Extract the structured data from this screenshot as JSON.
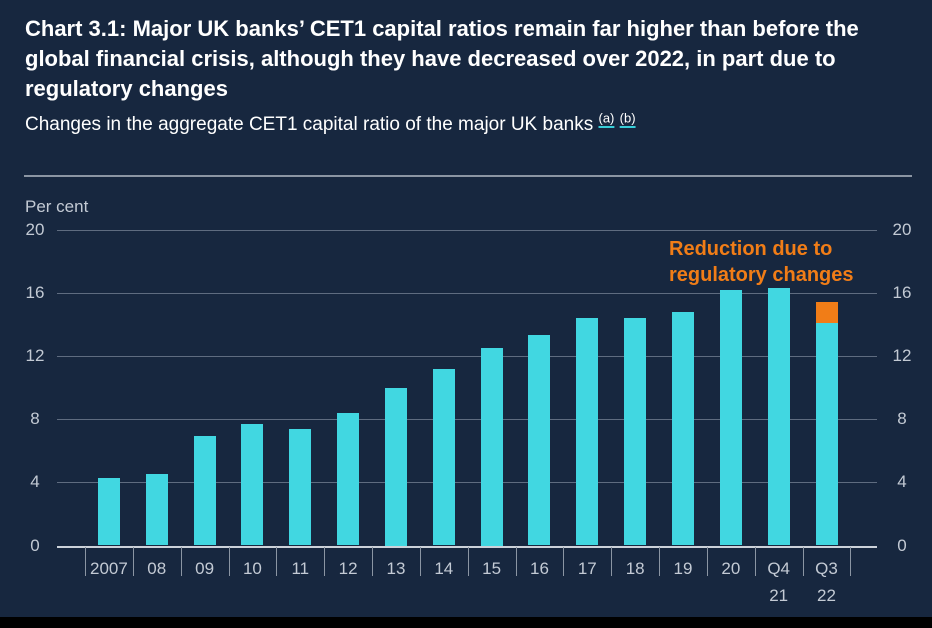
{
  "header": {
    "title": "Chart 3.1: Major UK banks’ CET1 capital ratios remain far higher than before the global financial crisis, although they have decreased over 2022, in part due to regulatory changes",
    "subtitle": "Changes in the aggregate CET1 capital ratio of the major UK banks",
    "footnotes": [
      "(a)",
      "(b)"
    ]
  },
  "chart_data": {
    "type": "bar",
    "title": "Changes in the aggregate CET1 capital ratio of the major UK banks",
    "ylabel": "Per cent",
    "xlabel": "",
    "ylim": [
      0,
      20
    ],
    "yticks": [
      0,
      4,
      8,
      12,
      16,
      20
    ],
    "grid": true,
    "categories": [
      "2007",
      "08",
      "09",
      "10",
      "11",
      "12",
      "13",
      "14",
      "15",
      "16",
      "17",
      "18",
      "19",
      "20",
      "Q4\n21",
      "Q3\n22"
    ],
    "series": [
      {
        "name": "CET1 capital ratio",
        "color_var": "bar",
        "values": [
          4.3,
          4.5,
          6.9,
          7.7,
          7.4,
          8.4,
          10.0,
          11.2,
          12.5,
          13.3,
          14.4,
          14.4,
          14.8,
          16.2,
          16.3,
          14.1
        ]
      },
      {
        "name": "Reduction due to regulatory changes",
        "color_var": "orange",
        "values": [
          0,
          0,
          0,
          0,
          0,
          0,
          0,
          0,
          0,
          0,
          0,
          0,
          0,
          0,
          0,
          1.3
        ]
      }
    ],
    "annotation": "Reduction due to\nregulatory changes",
    "legend": "none"
  },
  "colors": {
    "bg": "#17273f",
    "text_white": "#ffffff",
    "axis_text": "#c3cad4",
    "grid": "#5f6c80",
    "zero_line": "#ccd2da",
    "tick": "#8b95a3",
    "divider": "#8b95a3",
    "bar": "#41d7e1",
    "orange": "#f17d17",
    "bottom_bar": "#000000",
    "link_underline": "#38cdd8"
  }
}
